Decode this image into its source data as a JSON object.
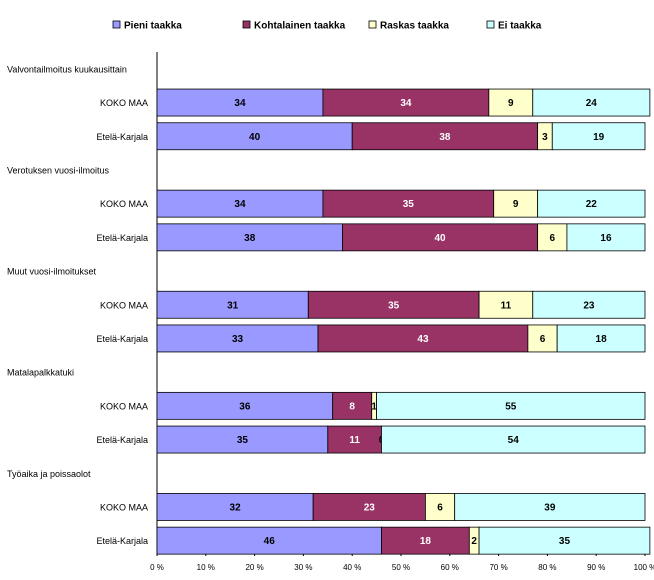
{
  "chart_data": {
    "type": "bar",
    "orientation": "horizontal",
    "stacked": true,
    "percent": true,
    "legend_position": "top",
    "series": [
      {
        "name": "Pieni taakka",
        "color": "#9999ff"
      },
      {
        "name": "Kohtalainen taakka",
        "color": "#993366"
      },
      {
        "name": "Raskas taakka",
        "color": "#ffffcc"
      },
      {
        "name": "Ei taakka",
        "color": "#ccffff"
      }
    ],
    "groups": [
      {
        "title": "Valvontailmoitus kuukausittain",
        "rows": [
          {
            "label": "KOKO MAA",
            "values": [
              34,
              34,
              9,
              24
            ]
          },
          {
            "label": "Etelä-Karjala",
            "values": [
              40,
              38,
              3,
              19
            ]
          }
        ]
      },
      {
        "title": "Verotuksen vuosi-ilmoitus",
        "rows": [
          {
            "label": "KOKO MAA",
            "values": [
              34,
              35,
              9,
              22
            ]
          },
          {
            "label": "Etelä-Karjala",
            "values": [
              38,
              40,
              6,
              16
            ]
          }
        ]
      },
      {
        "title": "Muut vuosi-ilmoitukset",
        "rows": [
          {
            "label": "KOKO MAA",
            "values": [
              31,
              35,
              11,
              23
            ]
          },
          {
            "label": "Etelä-Karjala",
            "values": [
              33,
              43,
              6,
              18
            ]
          }
        ]
      },
      {
        "title": "Matalapalkkatuki",
        "rows": [
          {
            "label": "KOKO MAA",
            "values": [
              36,
              8,
              1,
              55
            ]
          },
          {
            "label": "Etelä-Karjala",
            "values": [
              35,
              11,
              0,
              54
            ]
          }
        ]
      },
      {
        "title": "Työaika ja poissaolot",
        "rows": [
          {
            "label": "KOKO MAA",
            "values": [
              32,
              23,
              6,
              39
            ]
          },
          {
            "label": "Etelä-Karjala",
            "values": [
              46,
              18,
              2,
              35
            ]
          }
        ]
      }
    ],
    "x_ticks": [
      "0 %",
      "10 %",
      "20 %",
      "30 %",
      "40 %",
      "50 %",
      "60 %",
      "70 %",
      "80 %",
      "90 %",
      "100 %"
    ],
    "xlim": [
      0,
      100
    ]
  }
}
